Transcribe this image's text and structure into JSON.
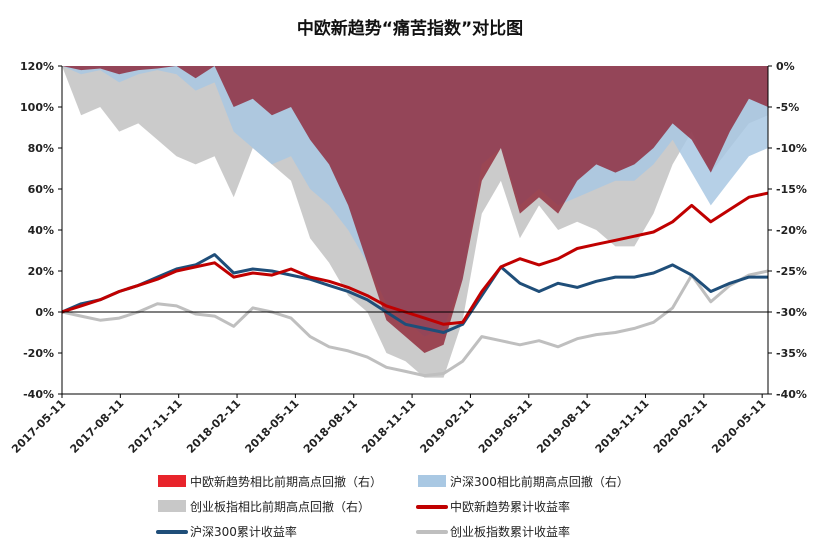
{
  "chart_data": {
    "type": "line",
    "title": "中欧新趋势“痛苦指数”对比图",
    "x_tick_labels": [
      "2017-05-11",
      "2017-08-11",
      "2017-11-11",
      "2018-02-11",
      "2018-05-11",
      "2018-08-11",
      "2018-11-11",
      "2019-02-11",
      "2019-05-11",
      "2019-08-11",
      "2019-11-11",
      "2020-02-11",
      "2020-05-11"
    ],
    "left_axis": {
      "ylim": [
        -40,
        120
      ],
      "ticks": [
        -40,
        -20,
        0,
        20,
        40,
        60,
        80,
        100,
        120
      ],
      "tick_labels": [
        "-40%",
        "-20%",
        "0%",
        "20%",
        "40%",
        "60%",
        "80%",
        "100%",
        "120%"
      ]
    },
    "right_axis": {
      "ylim": [
        -40,
        0
      ],
      "ticks": [
        -40,
        -35,
        -30,
        -25,
        -20,
        -15,
        -10,
        -5,
        0
      ],
      "tick_labels": [
        "-40%",
        "-35%",
        "-30%",
        "-25%",
        "-20%",
        "-15%",
        "-10%",
        "-5%",
        "0%"
      ]
    },
    "x": [
      "2017-05-11",
      "2017-06-11",
      "2017-07-11",
      "2017-08-11",
      "2017-09-11",
      "2017-10-11",
      "2017-11-11",
      "2017-12-11",
      "2018-01-11",
      "2018-02-11",
      "2018-03-11",
      "2018-04-11",
      "2018-05-11",
      "2018-06-11",
      "2018-07-11",
      "2018-08-11",
      "2018-09-11",
      "2018-10-11",
      "2018-11-11",
      "2018-12-11",
      "2019-01-11",
      "2019-02-11",
      "2019-03-11",
      "2019-04-11",
      "2019-05-11",
      "2019-06-11",
      "2019-07-11",
      "2019-08-11",
      "2019-09-11",
      "2019-10-11",
      "2019-11-11",
      "2019-12-11",
      "2020-01-11",
      "2020-02-11",
      "2020-03-11",
      "2020-04-11",
      "2020-05-11",
      "2020-06-11"
    ],
    "series": [
      {
        "name": "中欧新趋势相比前期高点回撤（右）",
        "axis": "right",
        "kind": "area",
        "color": "#e8242b",
        "values": [
          0,
          -0.5,
          -0.3,
          -1,
          -0.5,
          -0.3,
          0,
          -1.5,
          0,
          -5,
          -4,
          -6,
          -5,
          -9,
          -12,
          -17,
          -24,
          -31,
          -33,
          -35,
          -34,
          -26,
          -14,
          -10,
          -18,
          -16,
          -18,
          -14,
          -12,
          -13,
          -12,
          -10,
          -7,
          -9,
          -13,
          -8,
          -4,
          -5
        ]
      },
      {
        "name": "沪深300相比前期高点回撤（右）",
        "axis": "right",
        "kind": "area",
        "color": "#a9c8e3",
        "values": [
          0,
          -1,
          -0.5,
          -2,
          -1,
          -0.5,
          -1,
          -3,
          -2,
          -8,
          -10,
          -12,
          -11,
          -15,
          -17,
          -20,
          -24,
          -29,
          -31,
          -33,
          -32,
          -26,
          -12,
          -10,
          -17,
          -15,
          -17,
          -16,
          -15,
          -14,
          -14,
          -12,
          -9,
          -13,
          -17,
          -14,
          -11,
          -10
        ]
      },
      {
        "name": "创业板指相比前期高点回撤（右）",
        "axis": "right",
        "kind": "area",
        "color": "#c8c8c8",
        "values": [
          0,
          -6,
          -5,
          -8,
          -7,
          -9,
          -11,
          -12,
          -11,
          -16,
          -10,
          -12,
          -14,
          -21,
          -24,
          -28,
          -30,
          -35,
          -36,
          -38,
          -38,
          -31,
          -18,
          -14,
          -21,
          -17,
          -20,
          -19,
          -20,
          -22,
          -22,
          -18,
          -12,
          -8,
          -13,
          -10,
          -7,
          -6
        ]
      },
      {
        "name": "中欧新趋势累计收益率",
        "axis": "left",
        "kind": "line",
        "color": "#c00000",
        "values": [
          0,
          3,
          6,
          10,
          13,
          16,
          20,
          22,
          24,
          17,
          19,
          18,
          21,
          17,
          15,
          12,
          8,
          3,
          0,
          -3,
          -6,
          -5,
          10,
          22,
          26,
          23,
          26,
          31,
          33,
          35,
          37,
          39,
          44,
          52,
          44,
          50,
          56,
          58
        ]
      },
      {
        "name": "沪深300累计收益率",
        "axis": "left",
        "kind": "line",
        "color": "#1f4e79",
        "values": [
          0,
          4,
          6,
          10,
          13,
          17,
          21,
          23,
          28,
          19,
          21,
          20,
          18,
          16,
          13,
          10,
          6,
          0,
          -6,
          -8,
          -10,
          -6,
          8,
          22,
          14,
          10,
          14,
          12,
          15,
          17,
          17,
          19,
          23,
          18,
          10,
          14,
          17,
          17
        ]
      },
      {
        "name": "创业板指数累计收益率",
        "axis": "left",
        "kind": "line",
        "color": "#bfbfbf",
        "values": [
          0,
          -2,
          -4,
          -3,
          0,
          4,
          3,
          -1,
          -2,
          -7,
          2,
          0,
          -3,
          -12,
          -17,
          -19,
          -22,
          -27,
          -29,
          -31,
          -30,
          -24,
          -12,
          -14,
          -16,
          -14,
          -17,
          -13,
          -11,
          -10,
          -8,
          -5,
          2,
          18,
          5,
          13,
          18,
          20
        ]
      }
    ],
    "legend": {
      "placement": "bottom"
    }
  }
}
